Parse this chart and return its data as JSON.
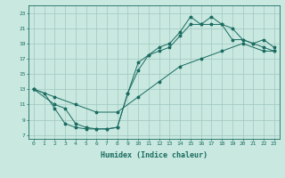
{
  "xlabel": "Humidex (Indice chaleur)",
  "bg_color": "#c8e8e0",
  "grid_color": "#a0c8c0",
  "line_color": "#1a6b60",
  "xlim": [
    -0.5,
    23.5
  ],
  "ylim": [
    6.5,
    24.0
  ],
  "xticks": [
    0,
    1,
    2,
    3,
    4,
    5,
    6,
    7,
    8,
    9,
    10,
    11,
    12,
    13,
    14,
    15,
    16,
    17,
    18,
    19,
    20,
    21,
    22,
    23
  ],
  "yticks": [
    7,
    9,
    11,
    13,
    15,
    17,
    19,
    21,
    23
  ],
  "line1_x": [
    0,
    2,
    3,
    4,
    5,
    6,
    7,
    8,
    9,
    10,
    11,
    12,
    13,
    14,
    15,
    16,
    17,
    18,
    19,
    20,
    21,
    22,
    23
  ],
  "line1_y": [
    13,
    11,
    10.5,
    8.5,
    8.0,
    7.8,
    7.8,
    8.0,
    12.5,
    15.5,
    17.5,
    18.0,
    18.5,
    20.0,
    21.5,
    21.5,
    21.5,
    21.5,
    21.0,
    19.5,
    19.0,
    18.5,
    18.0
  ],
  "line2_x": [
    0,
    1,
    2,
    3,
    4,
    5,
    6,
    7,
    8,
    9,
    10,
    11,
    12,
    13,
    14,
    15,
    16,
    17,
    18,
    19,
    20,
    21,
    22,
    23
  ],
  "line2_y": [
    13,
    12.5,
    10.5,
    8.5,
    8.0,
    7.8,
    7.8,
    7.8,
    8.0,
    12.5,
    16.5,
    17.5,
    18.5,
    19.0,
    20.5,
    22.5,
    21.5,
    22.5,
    21.5,
    19.5,
    19.5,
    19.0,
    19.5,
    18.5
  ],
  "line3_x": [
    0,
    2,
    4,
    6,
    8,
    10,
    12,
    14,
    16,
    18,
    20,
    22,
    23
  ],
  "line3_y": [
    13,
    12,
    11,
    10,
    10,
    12,
    14,
    16,
    17,
    18,
    19,
    18,
    18
  ]
}
